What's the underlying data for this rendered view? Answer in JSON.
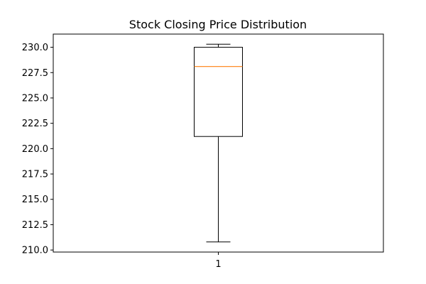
{
  "chart_data": {
    "type": "box",
    "title": "Stock Closing Price Distribution",
    "xlabel": "",
    "ylabel": "",
    "categories": [
      "1"
    ],
    "boxes": [
      {
        "category": "1",
        "whisker_low": 210.8,
        "q1": 221.2,
        "median": 228.1,
        "q3": 230.0,
        "whisker_high": 230.3
      }
    ],
    "ylim": [
      209.8,
      231.3
    ],
    "yticks": [
      210.0,
      212.5,
      215.0,
      217.5,
      220.0,
      222.5,
      225.0,
      227.5,
      230.0
    ],
    "grid": false,
    "colors": {
      "box": "#000000",
      "median": "#ff7f0e",
      "axes": "#000000",
      "background": "#ffffff"
    }
  }
}
